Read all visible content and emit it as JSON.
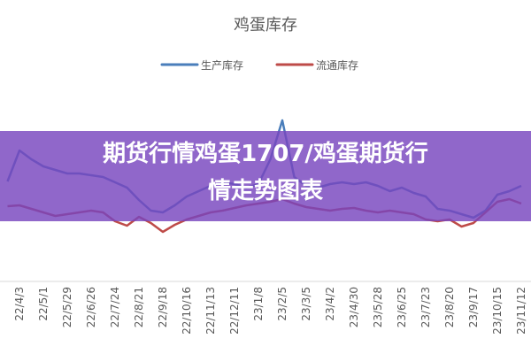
{
  "chart_data": {
    "type": "line",
    "title": "鸡蛋库存",
    "categories": [
      null,
      "22/4/3",
      null,
      "22/5/1",
      null,
      "22/5/29",
      null,
      "22/6/26",
      null,
      "22/7/24",
      null,
      "22/8/21",
      null,
      "22/9/18",
      null,
      "22/10/16",
      null,
      "22/11/13",
      null,
      "22/12/11",
      null,
      "23/1/8",
      null,
      "23/2/5",
      null,
      "23/3/5",
      null,
      "23/4/2",
      null,
      "23/4/30",
      null,
      "23/5/28",
      null,
      "23/6/25",
      null,
      "23/7/23",
      null,
      "23/8/20",
      null,
      "23/9/17",
      null,
      "23/10/15",
      null,
      "23/11/12"
    ],
    "series": [
      {
        "name": "生产库存",
        "color": "#4a7ebb",
        "values": [
          47.5,
          65,
          60,
          56,
          54,
          52,
          52,
          51,
          50,
          47,
          44,
          37,
          31,
          30,
          34,
          39,
          42,
          45,
          47,
          46,
          44,
          46,
          60,
          82,
          50,
          45,
          44,
          46,
          47,
          46,
          47,
          45,
          42,
          44,
          41,
          39,
          32,
          31,
          29,
          27,
          31,
          40,
          42,
          45
        ]
      },
      {
        "name": "流通库存",
        "color": "#be4b48",
        "values": [
          33.5,
          34,
          32,
          30,
          28,
          29,
          30,
          31,
          30,
          25,
          22.5,
          27.5,
          24,
          19,
          23,
          26,
          28,
          30,
          31,
          32.5,
          34,
          35,
          36,
          37.5,
          35,
          33,
          32,
          31,
          32,
          32.5,
          31,
          30,
          31,
          30,
          29,
          26,
          25,
          26,
          22,
          24,
          30,
          36,
          37.5,
          35
        ]
      }
    ],
    "ylim": [
      0,
      100
    ]
  },
  "banner": {
    "lines": [
      "期货行情鸡蛋1707/鸡蛋期货行",
      "情走势图表"
    ]
  }
}
